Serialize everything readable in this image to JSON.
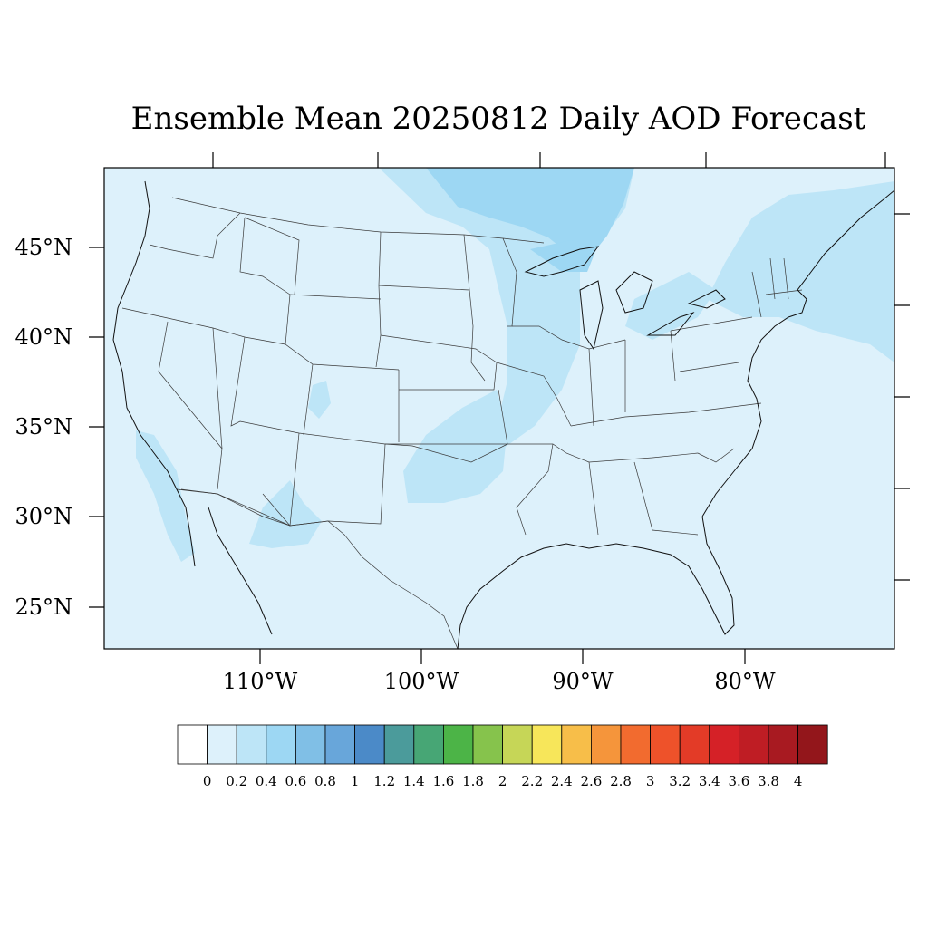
{
  "title": "Ensemble Mean 20250812 Daily AOD Forecast",
  "lat_labels": [
    "45°N",
    "40°N",
    "35°N",
    "30°N",
    "25°N"
  ],
  "lon_labels": [
    "110°W",
    "100°W",
    "90°W",
    "80°W"
  ],
  "colorbar": {
    "labels": [
      "0",
      "0.2",
      "0.4",
      "0.6",
      "0.8",
      "1",
      "1.2",
      "1.4",
      "1.6",
      "1.8",
      "2",
      "2.2",
      "2.4",
      "2.6",
      "2.8",
      "3",
      "3.2",
      "3.4",
      "3.6",
      "3.8",
      "4"
    ],
    "colors": [
      "#ffffff",
      "#ddf1fb",
      "#bde5f7",
      "#9dd7f3",
      "#80bfe6",
      "#68a6da",
      "#4b8ac8",
      "#4b9b9b",
      "#47a675",
      "#4cb447",
      "#86c34c",
      "#c6d657",
      "#f7e65a",
      "#f7be49",
      "#f5953b",
      "#f26b2f",
      "#ee522a",
      "#e33b27",
      "#d52127",
      "#bf1d24",
      "#a81a21",
      "#93161b"
    ]
  },
  "map": {
    "background_color": "#ddf1fb",
    "plume_color_04": "#bde5f7",
    "plume_color_06": "#9dd7f3",
    "extent_lon": [
      -119,
      -70
    ],
    "extent_lat": [
      22.5,
      49.3
    ]
  }
}
